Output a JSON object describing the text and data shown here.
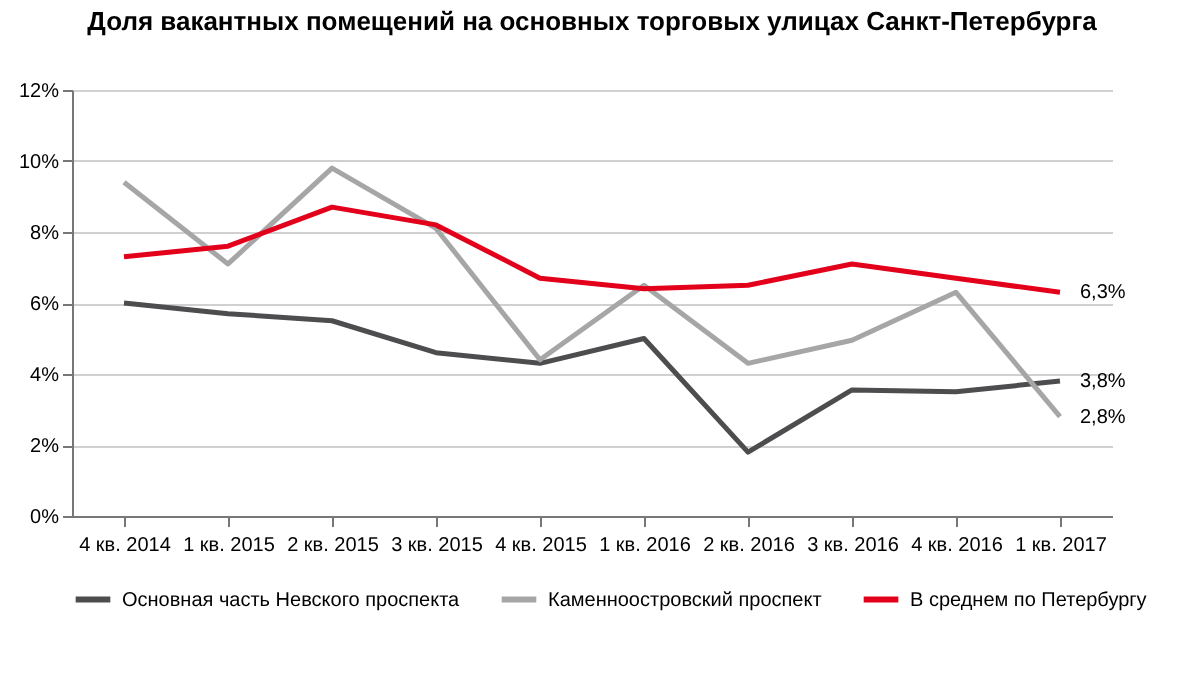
{
  "chart_data": {
    "type": "line",
    "title": "Доля вакантных помещений на основных торговых улицах Санкт-Петербурга",
    "categories": [
      "4 кв. 2014",
      "1 кв. 2015",
      "2 кв. 2015",
      "3 кв. 2015",
      "4 кв. 2015",
      "1 кв. 2016",
      "2 кв. 2016",
      "3 кв. 2016",
      "4 кв. 2016",
      "1 кв. 2017"
    ],
    "series": [
      {
        "name": "Основная часть Невского проспекта",
        "color": "#4d4d4f",
        "values": [
          6.0,
          5.7,
          5.5,
          4.6,
          4.3,
          5.0,
          1.8,
          3.55,
          3.5,
          3.8
        ],
        "value_labels": [
          null,
          null,
          null,
          null,
          null,
          null,
          null,
          null,
          null,
          "3,8%"
        ]
      },
      {
        "name": "Каменноостровский проспект",
        "color": "#a6a6a6",
        "values": [
          9.4,
          7.1,
          9.8,
          8.1,
          4.4,
          6.5,
          4.3,
          4.95,
          6.3,
          2.8
        ],
        "value_labels": [
          null,
          null,
          null,
          null,
          null,
          null,
          null,
          null,
          null,
          "2,8%"
        ]
      },
      {
        "name": "В среднем по Петербургу",
        "color": "#e3001b",
        "values": [
          7.3,
          7.6,
          8.7,
          8.2,
          6.7,
          6.4,
          6.5,
          7.1,
          6.7,
          6.3
        ],
        "value_labels": [
          null,
          null,
          null,
          null,
          null,
          null,
          null,
          null,
          null,
          "6,3%"
        ]
      }
    ],
    "ylim": [
      0,
      12
    ],
    "yticks": [
      {
        "value": 0,
        "label": "0%"
      },
      {
        "value": 2,
        "label": "2%"
      },
      {
        "value": 4,
        "label": "4%"
      },
      {
        "value": 6,
        "label": "6%"
      },
      {
        "value": 8,
        "label": "8%"
      },
      {
        "value": 10,
        "label": "10%"
      },
      {
        "value": 12,
        "label": "12%"
      }
    ],
    "grid": "y",
    "legend": "bottom",
    "line_style": "solid",
    "marker": "none"
  }
}
